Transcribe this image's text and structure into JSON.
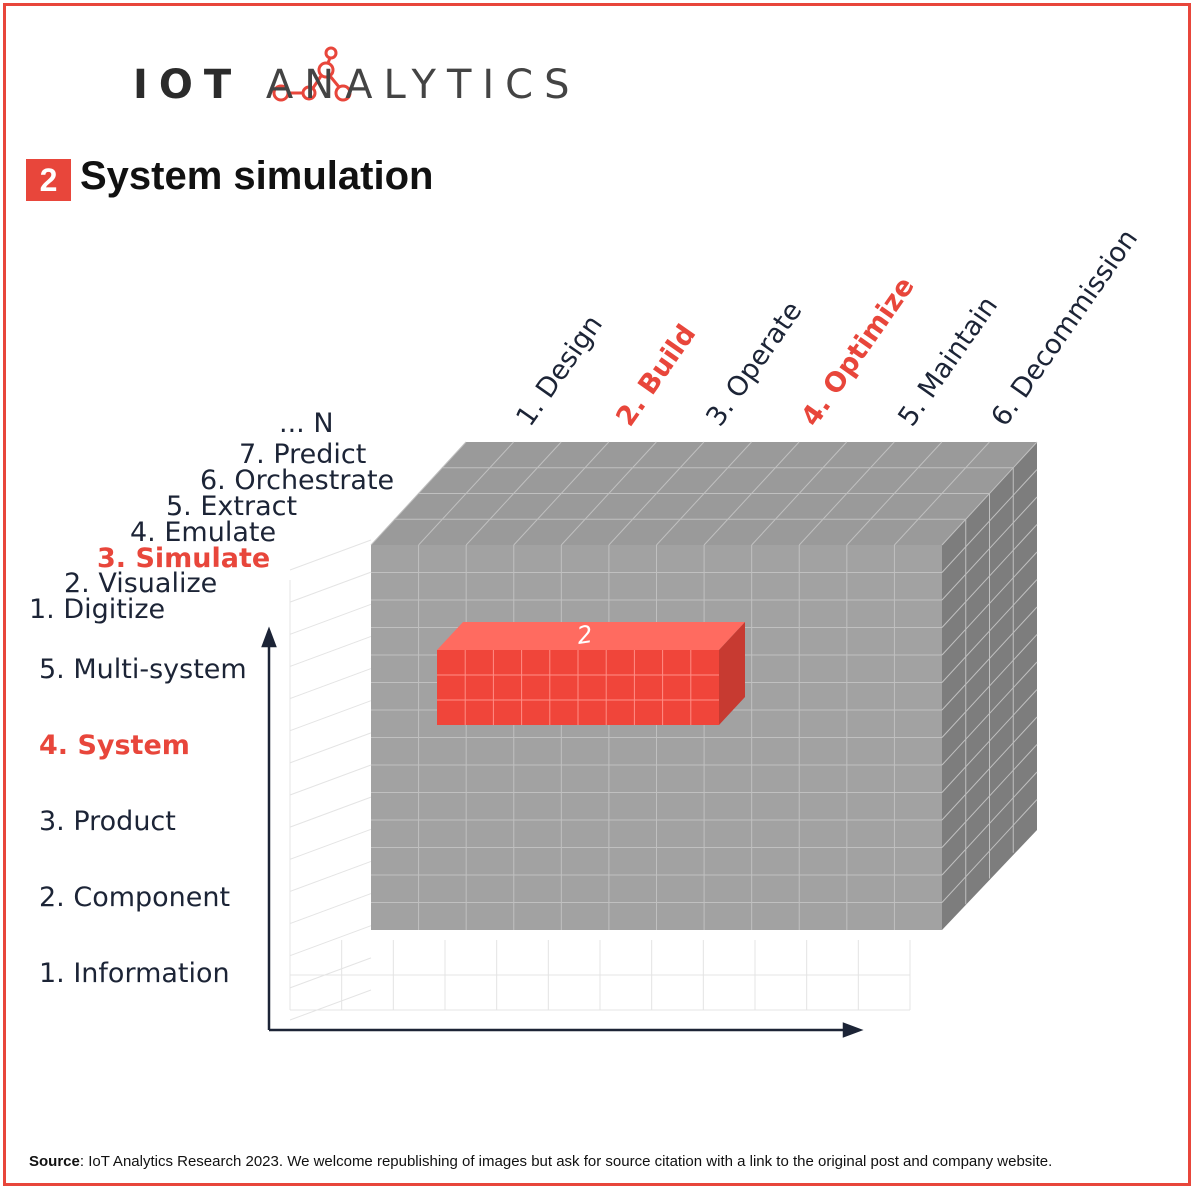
{
  "brand": {
    "name_bold": "IOT",
    "name_light": "ANALYTICS",
    "accent_color": "#e8463b",
    "logo_icon": "network-nodes-icon"
  },
  "title": {
    "number": "2",
    "text": "System simulation"
  },
  "lifecycle_axis": [
    {
      "label": "1. Design",
      "highlight": false
    },
    {
      "label": "2. Build",
      "highlight": true
    },
    {
      "label": "3. Operate",
      "highlight": false
    },
    {
      "label": "4. Optimize",
      "highlight": true
    },
    {
      "label": "5. Maintain",
      "highlight": false
    },
    {
      "label": "6. Decommission",
      "highlight": false
    }
  ],
  "capability_axis": [
    {
      "label": "... N",
      "highlight": false
    },
    {
      "label": "7. Predict",
      "highlight": false
    },
    {
      "label": "6. Orchestrate",
      "highlight": false
    },
    {
      "label": "5. Extract",
      "highlight": false
    },
    {
      "label": "4. Emulate",
      "highlight": false
    },
    {
      "label": "3. Simulate",
      "highlight": true
    },
    {
      "label": "2. Visualize",
      "highlight": false
    },
    {
      "label": "1. Digitize",
      "highlight": false
    }
  ],
  "scope_axis": [
    {
      "label": "5. Multi-system",
      "highlight": false
    },
    {
      "label": "4. System",
      "highlight": true
    },
    {
      "label": "3. Product",
      "highlight": false
    },
    {
      "label": "2. Component",
      "highlight": false
    },
    {
      "label": "1. Information",
      "highlight": false
    }
  ],
  "highlight_block_label": "2",
  "source": {
    "label": "Source",
    "text": ": IoT Analytics Research 2023. We welcome republishing of images but ask for source citation with a link to the original post and company website."
  }
}
